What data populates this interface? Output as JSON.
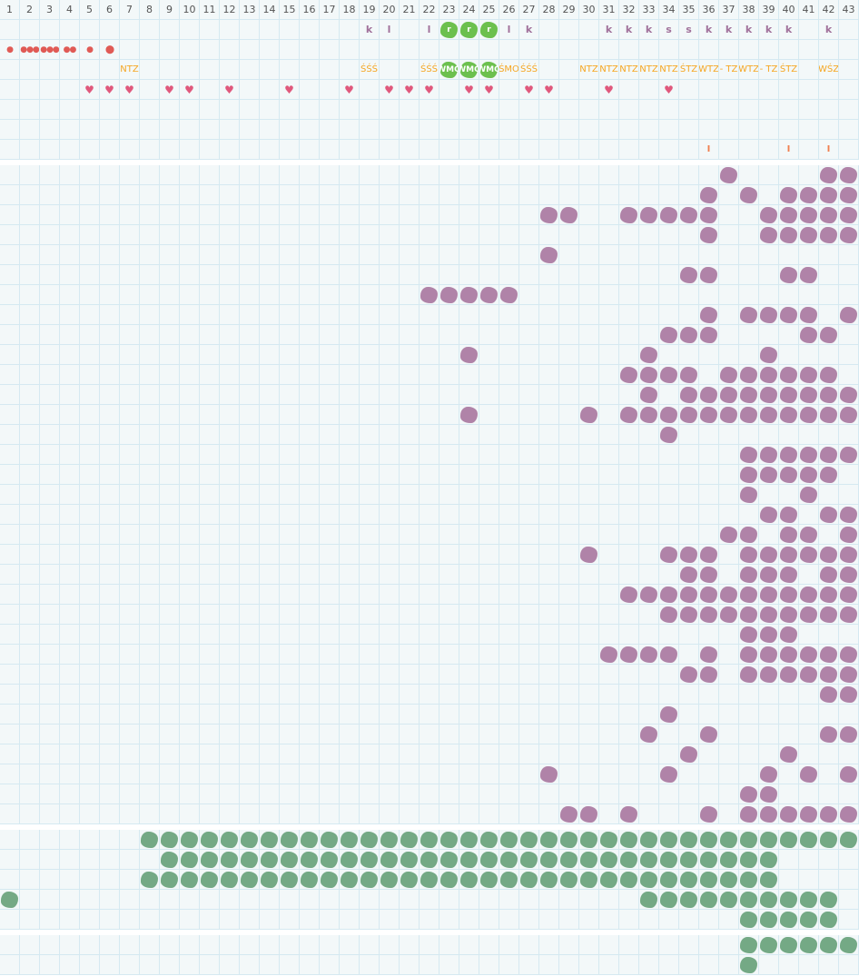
{
  "colors": {
    "grid_bg": "#f3f8f9",
    "grid_line": "#d5e9f1",
    "purple": "#b083a8",
    "green": "#74a985",
    "bright_green": "#6cc04e",
    "orange": "#f5a623",
    "heart": "#e0587c",
    "drop": "#e05a55"
  },
  "columns": [
    "1",
    "2",
    "3",
    "4",
    "5",
    "6",
    "7",
    "8",
    "9",
    "10",
    "11",
    "12",
    "13",
    "14",
    "15",
    "16",
    "17",
    "18",
    "19",
    "20",
    "21",
    "22",
    "23",
    "24",
    "25",
    "26",
    "27",
    "28",
    "29",
    "30",
    "31",
    "32",
    "33",
    "34",
    "35",
    "36",
    "37",
    "38",
    "39",
    "40",
    "41",
    "42",
    "43"
  ],
  "top_rows": [
    [
      {
        "col": 19,
        "type": "letter",
        "text": "k"
      },
      {
        "col": 20,
        "type": "letter",
        "text": "l"
      },
      {
        "col": 22,
        "type": "letter",
        "text": "l"
      },
      {
        "col": 23,
        "type": "bright",
        "text": "r"
      },
      {
        "col": 24,
        "type": "bright",
        "text": "r"
      },
      {
        "col": 25,
        "type": "bright",
        "text": "r"
      },
      {
        "col": 26,
        "type": "letter",
        "text": "l"
      },
      {
        "col": 27,
        "type": "letter",
        "text": "k"
      },
      {
        "col": 31,
        "type": "letter",
        "text": "k"
      },
      {
        "col": 32,
        "type": "letter",
        "text": "k"
      },
      {
        "col": 33,
        "type": "letter",
        "text": "k"
      },
      {
        "col": 34,
        "type": "letter",
        "text": "s"
      },
      {
        "col": 35,
        "type": "letter",
        "text": "s"
      },
      {
        "col": 36,
        "type": "letter",
        "text": "k"
      },
      {
        "col": 37,
        "type": "letter",
        "text": "k"
      },
      {
        "col": 38,
        "type": "letter",
        "text": "k"
      },
      {
        "col": 39,
        "type": "letter",
        "text": "k"
      },
      {
        "col": 40,
        "type": "letter",
        "text": "k"
      },
      {
        "col": 42,
        "type": "letter",
        "text": "k"
      }
    ],
    [
      {
        "col": 1,
        "type": "drop",
        "text": "●",
        "icon": "drop-icon"
      },
      {
        "col": 2,
        "type": "drop",
        "text": "●●●",
        "icon": "drops-icon"
      },
      {
        "col": 3,
        "type": "drop",
        "text": "●●●",
        "icon": "drops-icon"
      },
      {
        "col": 4,
        "type": "drop",
        "text": "●●",
        "icon": "drops-icon"
      },
      {
        "col": 5,
        "type": "drop",
        "text": "●",
        "icon": "drop-icon"
      },
      {
        "col": 6,
        "type": "drop",
        "text": "⬤",
        "icon": "circle-icon"
      }
    ],
    [
      {
        "col": 7,
        "type": "abbr",
        "text": "NTZ"
      },
      {
        "col": 19,
        "type": "abbr",
        "text": "ŚŚŚ"
      },
      {
        "col": 22,
        "type": "abbr",
        "text": "ŚŚŚ"
      },
      {
        "col": 23,
        "type": "bright",
        "text": "WMO"
      },
      {
        "col": 24,
        "type": "bright",
        "text": "WMO"
      },
      {
        "col": 25,
        "type": "bright",
        "text": "WMO"
      },
      {
        "col": 26,
        "type": "abbr",
        "text": "ŚMO"
      },
      {
        "col": 27,
        "type": "abbr",
        "text": "ŚŚŚ"
      },
      {
        "col": 30,
        "type": "abbr",
        "text": "NTZ"
      },
      {
        "col": 31,
        "type": "abbr",
        "text": "NTZ"
      },
      {
        "col": 32,
        "type": "abbr",
        "text": "NTZ"
      },
      {
        "col": 33,
        "type": "abbr",
        "text": "NTZ"
      },
      {
        "col": 34,
        "type": "abbr",
        "text": "NTZ"
      },
      {
        "col": 35,
        "type": "abbr",
        "text": "ŚTZ"
      },
      {
        "col": 36,
        "type": "abbr",
        "text": "WTZ"
      },
      {
        "col": 37,
        "type": "abbr",
        "text": "- TZ"
      },
      {
        "col": 38,
        "type": "abbr",
        "text": "WTZ"
      },
      {
        "col": 39,
        "type": "abbr",
        "text": "- TZ"
      },
      {
        "col": 40,
        "type": "abbr",
        "text": "ŚTZ"
      },
      {
        "col": 42,
        "type": "abbr",
        "text": "WŚZ"
      }
    ],
    [
      {
        "col": 5,
        "type": "heart",
        "text": "♥"
      },
      {
        "col": 6,
        "type": "heart",
        "text": "♥"
      },
      {
        "col": 7,
        "type": "heart",
        "text": "♥"
      },
      {
        "col": 9,
        "type": "heart",
        "text": "♥"
      },
      {
        "col": 10,
        "type": "heart",
        "text": "♥"
      },
      {
        "col": 12,
        "type": "heart",
        "text": "♥"
      },
      {
        "col": 15,
        "type": "heart",
        "text": "♥"
      },
      {
        "col": 18,
        "type": "heart",
        "text": "♥"
      },
      {
        "col": 20,
        "type": "heart",
        "text": "♥"
      },
      {
        "col": 21,
        "type": "heart",
        "text": "♥"
      },
      {
        "col": 22,
        "type": "heart",
        "text": "♥"
      },
      {
        "col": 24,
        "type": "heart",
        "text": "♥"
      },
      {
        "col": 25,
        "type": "heart",
        "text": "♥"
      },
      {
        "col": 27,
        "type": "heart",
        "text": "♥"
      },
      {
        "col": 28,
        "type": "heart",
        "text": "♥"
      },
      {
        "col": 31,
        "type": "heart",
        "text": "♥"
      },
      {
        "col": 34,
        "type": "heart",
        "text": "♥"
      }
    ],
    [],
    [],
    [
      {
        "col": 36,
        "type": "tick",
        "text": "I"
      },
      {
        "col": 40,
        "type": "tick",
        "text": "I"
      },
      {
        "col": 42,
        "type": "tick",
        "text": "I"
      }
    ]
  ],
  "purple_rows": [
    [
      37,
      42,
      43
    ],
    [
      36,
      38,
      40,
      41,
      42,
      43
    ],
    [
      28,
      29,
      32,
      33,
      34,
      35,
      36,
      39,
      40,
      41,
      42,
      43
    ],
    [
      36,
      39,
      40,
      41,
      42,
      43
    ],
    [
      28
    ],
    [
      35,
      36,
      40,
      41
    ],
    [
      22,
      23,
      24,
      25,
      26
    ],
    [
      36,
      38,
      39,
      40,
      41,
      43
    ],
    [
      34,
      35,
      36,
      41,
      42
    ],
    [
      24,
      33,
      39
    ],
    [
      32,
      33,
      34,
      35,
      37,
      38,
      39,
      40,
      41,
      42
    ],
    [
      33,
      35,
      36,
      37,
      38,
      39,
      40,
      41,
      42,
      43
    ],
    [
      24,
      30,
      32,
      33,
      34,
      35,
      36,
      37,
      38,
      39,
      40,
      41,
      42,
      43
    ],
    [
      34
    ],
    [
      38,
      39,
      40,
      41,
      42,
      43
    ],
    [
      38,
      39,
      40,
      41,
      42
    ],
    [
      38,
      41
    ],
    [
      39,
      40,
      42,
      43
    ],
    [
      37,
      38,
      40,
      41,
      43
    ],
    [
      30,
      34,
      35,
      36,
      38,
      39,
      40,
      41,
      42,
      43
    ],
    [
      35,
      36,
      38,
      39,
      40,
      42,
      43
    ],
    [
      32,
      33,
      34,
      35,
      36,
      37,
      38,
      39,
      40,
      41,
      42,
      43
    ],
    [
      34,
      35,
      36,
      37,
      38,
      39,
      40,
      41,
      42,
      43
    ],
    [
      38,
      39,
      40
    ],
    [
      31,
      32,
      33,
      34,
      36,
      38,
      39,
      40,
      41,
      42,
      43
    ],
    [
      35,
      36,
      38,
      39,
      40,
      41,
      42,
      43
    ],
    [
      42,
      43
    ],
    [
      34
    ],
    [
      33,
      36,
      42,
      43
    ],
    [
      35,
      40
    ],
    [
      28,
      34,
      39,
      41,
      43
    ],
    [
      38,
      39
    ],
    [
      29,
      30,
      32,
      36,
      38,
      39,
      40,
      41,
      42,
      43
    ]
  ],
  "green_rows": [
    [
      8,
      9,
      10,
      11,
      12,
      13,
      14,
      15,
      16,
      17,
      18,
      19,
      20,
      21,
      22,
      23,
      24,
      25,
      26,
      27,
      28,
      29,
      30,
      31,
      32,
      33,
      34,
      35,
      36,
      37,
      38,
      39,
      40,
      41,
      42,
      43
    ],
    [
      9,
      10,
      11,
      12,
      13,
      14,
      15,
      16,
      17,
      18,
      19,
      20,
      21,
      22,
      23,
      24,
      25,
      26,
      27,
      28,
      29,
      30,
      31,
      32,
      33,
      34,
      35,
      36,
      37,
      38,
      39
    ],
    [
      8,
      9,
      10,
      11,
      12,
      13,
      14,
      15,
      16,
      17,
      18,
      19,
      20,
      21,
      22,
      23,
      24,
      25,
      26,
      27,
      28,
      29,
      30,
      31,
      32,
      33,
      34,
      35,
      36,
      37,
      38,
      39
    ],
    [
      1,
      33,
      34,
      35,
      36,
      37,
      38,
      39,
      40,
      41,
      42
    ],
    [
      38,
      39,
      40,
      41,
      42
    ]
  ],
  "bottom_rows": [
    [
      38,
      39,
      40,
      41,
      42,
      43
    ],
    [
      38
    ]
  ]
}
